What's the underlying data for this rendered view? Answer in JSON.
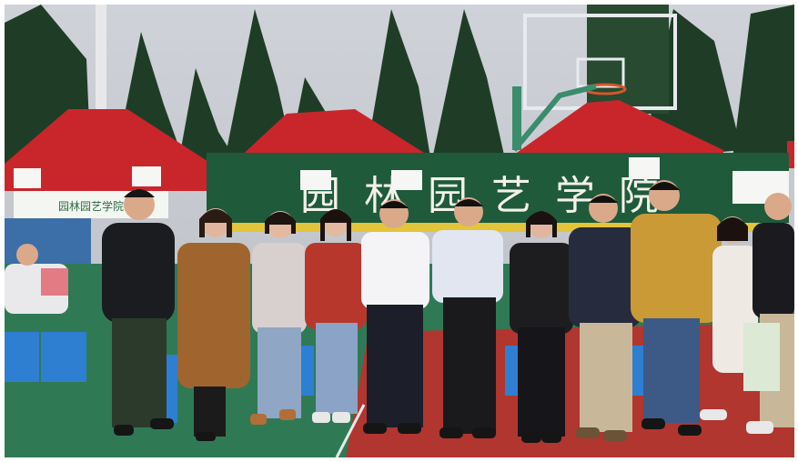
{
  "photo": {
    "banner_text": "园 林 园 艺 学 院",
    "small_sign_text": "园林园艺学院",
    "colors": {
      "sky": "#c9ccd2",
      "tent_red": "#c8262b",
      "banner_green": "#1f5a3b",
      "court_green": "#2f7a55",
      "court_red": "#b0362f",
      "stool_blue": "#2e7fd1",
      "tree_dark": "#1f3d26"
    }
  }
}
